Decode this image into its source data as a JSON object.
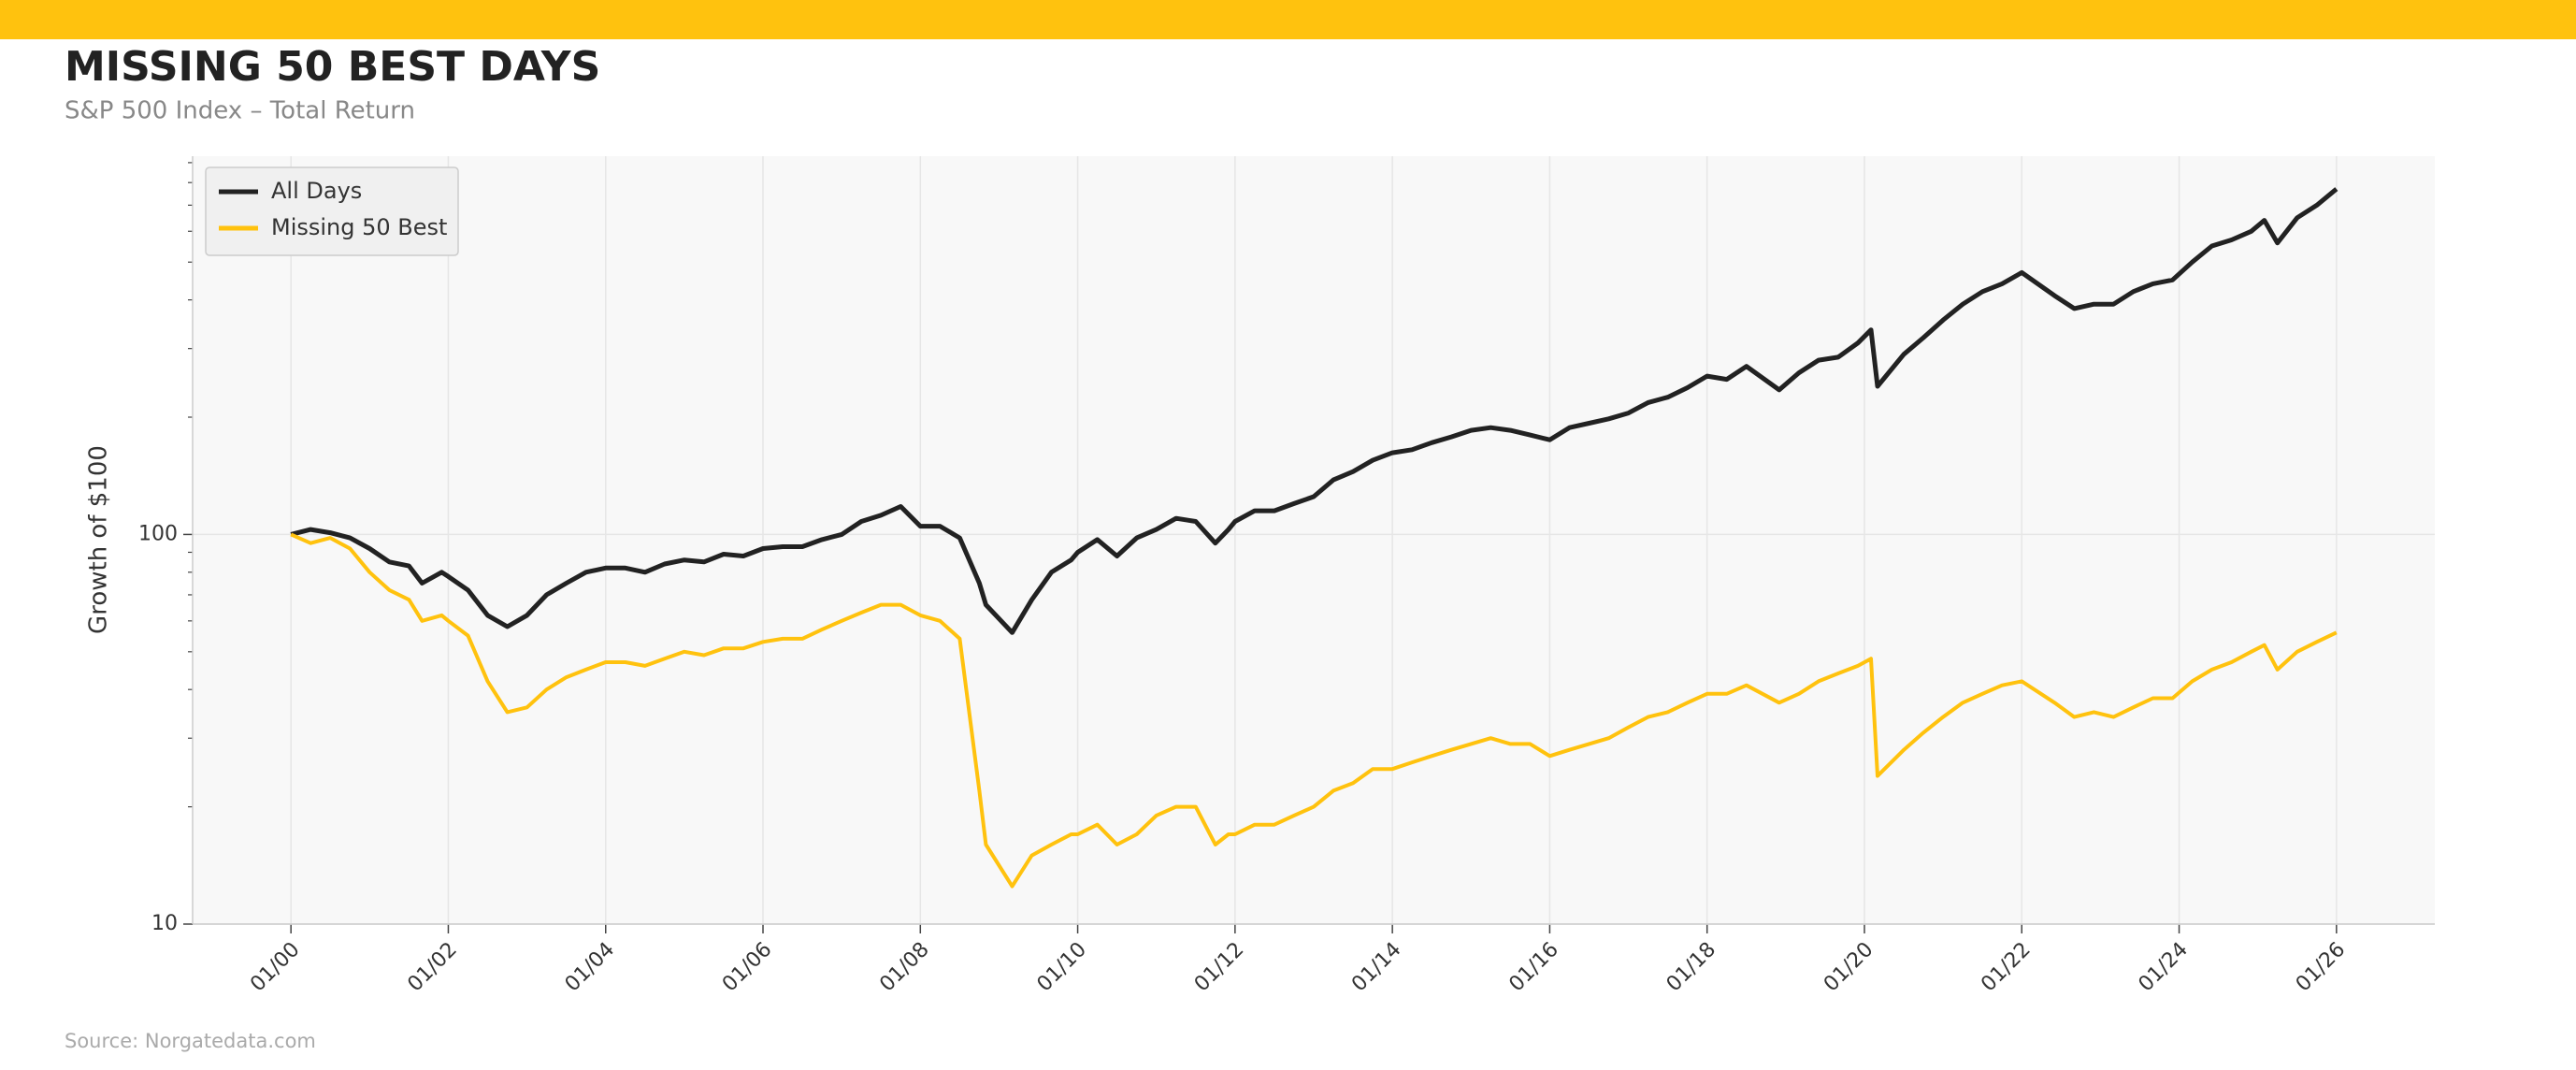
{
  "chart_data": {
    "type": "line",
    "title": "MISSING 50 BEST DAYS",
    "subtitle": "S&P 500 Index – Total Return",
    "y_label": "Growth of $100",
    "source": "Source: Norgatedata.com",
    "log_scale": true,
    "grid": true,
    "legend": "upper left",
    "xlim": [
      "10/98",
      "04/27"
    ],
    "xticks": [
      "01/00",
      "01/02",
      "01/04",
      "01/06",
      "01/08",
      "01/10",
      "01/12",
      "01/14",
      "01/16",
      "01/18",
      "01/20",
      "01/22",
      "01/24",
      "01/26"
    ],
    "ylim": [
      10,
      935
    ],
    "yticks": [
      10,
      100
    ],
    "yminorticks": [
      20,
      30,
      40,
      50,
      60,
      70,
      80,
      90,
      200,
      300,
      400,
      500,
      600,
      700,
      800,
      900
    ],
    "x": [
      "01/00",
      "04/00",
      "07/00",
      "10/00",
      "01/01",
      "04/01",
      "07/01",
      "09/01",
      "12/01",
      "01/02",
      "04/02",
      "07/02",
      "10/02",
      "01/03",
      "04/03",
      "07/03",
      "10/03",
      "01/04",
      "04/04",
      "07/04",
      "10/04",
      "01/05",
      "04/05",
      "07/05",
      "10/05",
      "01/06",
      "04/06",
      "07/06",
      "10/06",
      "01/07",
      "04/07",
      "07/07",
      "10/07",
      "01/08",
      "04/08",
      "07/08",
      "10/08",
      "11/08",
      "03/09",
      "06/09",
      "09/09",
      "12/09",
      "01/10",
      "04/10",
      "07/10",
      "10/10",
      "01/11",
      "04/11",
      "07/11",
      "10/11",
      "12/11",
      "01/12",
      "04/12",
      "07/12",
      "10/12",
      "01/13",
      "04/13",
      "07/13",
      "10/13",
      "01/14",
      "04/14",
      "07/14",
      "10/14",
      "01/15",
      "04/15",
      "07/15",
      "10/15",
      "01/16",
      "04/16",
      "07/16",
      "10/16",
      "01/17",
      "04/17",
      "07/17",
      "10/17",
      "01/18",
      "04/18",
      "07/18",
      "12/18",
      "03/19",
      "06/19",
      "09/19",
      "12/19",
      "02/20",
      "03/20",
      "07/20",
      "10/20",
      "01/21",
      "04/21",
      "07/21",
      "10/21",
      "01/22",
      "06/22",
      "09/22",
      "12/22",
      "03/23",
      "06/23",
      "09/23",
      "12/23",
      "03/24",
      "06/24",
      "09/24",
      "12/24",
      "02/25",
      "04/25",
      "07/25",
      "10/25",
      "01/26"
    ],
    "series": [
      {
        "name": "All Days",
        "color": "#222222",
        "values": [
          100,
          103,
          101,
          98,
          92,
          85,
          83,
          75,
          80,
          78,
          72,
          62,
          58,
          62,
          70,
          75,
          80,
          82,
          82,
          80,
          84,
          86,
          85,
          89,
          88,
          92,
          93,
          93,
          97,
          100,
          108,
          112,
          118,
          105,
          105,
          98,
          75,
          66,
          56,
          68,
          80,
          86,
          90,
          97,
          88,
          98,
          103,
          110,
          108,
          95,
          103,
          108,
          115,
          115,
          120,
          125,
          138,
          145,
          155,
          162,
          165,
          172,
          178,
          185,
          188,
          185,
          180,
          175,
          188,
          193,
          198,
          205,
          218,
          225,
          238,
          255,
          250,
          270,
          235,
          260,
          280,
          285,
          310,
          335,
          240,
          290,
          320,
          355,
          390,
          420,
          440,
          470,
          410,
          380,
          390,
          390,
          420,
          440,
          450,
          500,
          550,
          570,
          600,
          640,
          560,
          650,
          700,
          770
        ]
      },
      {
        "name": "Missing 50 Best",
        "color": "#ffc20e",
        "values": [
          100,
          95,
          98,
          92,
          80,
          72,
          68,
          60,
          62,
          60,
          55,
          42,
          35,
          36,
          40,
          43,
          45,
          47,
          47,
          46,
          48,
          50,
          49,
          51,
          51,
          53,
          54,
          54,
          57,
          60,
          63,
          66,
          66,
          62,
          60,
          54,
          22,
          16,
          12.5,
          15,
          16,
          17,
          17,
          18,
          16,
          17,
          19,
          20,
          20,
          16,
          17,
          17,
          18,
          18,
          19,
          20,
          22,
          23,
          25,
          25,
          26,
          27,
          28,
          29,
          30,
          29,
          29,
          27,
          28,
          29,
          30,
          32,
          34,
          35,
          37,
          39,
          39,
          41,
          37,
          39,
          42,
          44,
          46,
          48,
          24,
          28,
          31,
          34,
          37,
          39,
          41,
          42,
          37,
          34,
          35,
          34,
          36,
          38,
          38,
          42,
          45,
          47,
          50,
          52,
          45,
          50,
          53,
          56
        ]
      }
    ]
  }
}
